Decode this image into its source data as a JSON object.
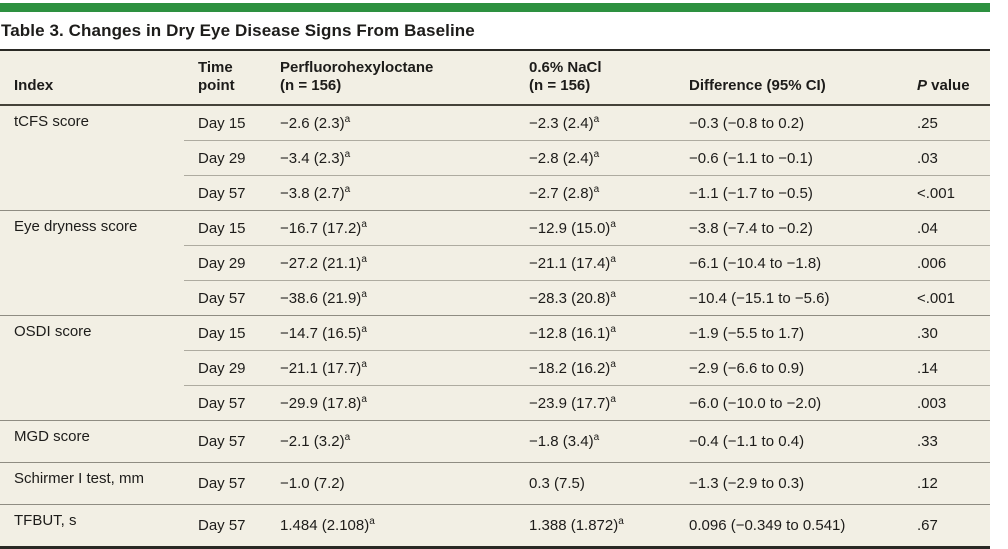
{
  "title": "Table 3. Changes in Dry Eye Disease Signs From Baseline",
  "colors": {
    "accent_green": "#2d9140",
    "table_background": "#f2efe4",
    "rule_dark": "#2a2924",
    "text": "#1d1c1a"
  },
  "table": {
    "columns": [
      {
        "label": "Index"
      },
      {
        "lines": [
          "Time",
          "point"
        ]
      },
      {
        "lines": [
          "Perfluorohexyloctane",
          "(n = 156)"
        ]
      },
      {
        "lines": [
          "0.6% NaCl",
          "(n = 156)"
        ]
      },
      {
        "label": "Difference (95% CI)"
      },
      {
        "italic_prefix": "P",
        "label": " value"
      }
    ],
    "footnote_marker": "a",
    "groups": [
      {
        "index": "tCFS score",
        "rows": [
          {
            "time": "Day 15",
            "drug": {
              "text": "−2.6 (2.3)",
              "sup": "a"
            },
            "nacl": {
              "text": "−2.3 (2.4)",
              "sup": "a"
            },
            "diff": "−0.3 (−0.8 to 0.2)",
            "p": ".25"
          },
          {
            "time": "Day 29",
            "drug": {
              "text": "−3.4 (2.3)",
              "sup": "a"
            },
            "nacl": {
              "text": "−2.8 (2.4)",
              "sup": "a"
            },
            "diff": "−0.6 (−1.1 to −0.1)",
            "p": ".03"
          },
          {
            "time": "Day 57",
            "drug": {
              "text": "−3.8 (2.7)",
              "sup": "a"
            },
            "nacl": {
              "text": "−2.7 (2.8)",
              "sup": "a"
            },
            "diff": "−1.1 (−1.7 to −0.5)",
            "p": "<.001"
          }
        ]
      },
      {
        "index": "Eye dryness score",
        "rows": [
          {
            "time": "Day 15",
            "drug": {
              "text": "−16.7 (17.2)",
              "sup": "a"
            },
            "nacl": {
              "text": "−12.9 (15.0)",
              "sup": "a"
            },
            "diff": "−3.8 (−7.4 to −0.2)",
            "p": ".04"
          },
          {
            "time": "Day 29",
            "drug": {
              "text": "−27.2 (21.1)",
              "sup": "a"
            },
            "nacl": {
              "text": "−21.1 (17.4)",
              "sup": "a"
            },
            "diff": "−6.1 (−10.4 to −1.8)",
            "p": ".006"
          },
          {
            "time": "Day 57",
            "drug": {
              "text": "−38.6 (21.9)",
              "sup": "a"
            },
            "nacl": {
              "text": "−28.3 (20.8)",
              "sup": "a"
            },
            "diff": "−10.4 (−15.1 to −5.6)",
            "p": "<.001"
          }
        ]
      },
      {
        "index": "OSDI score",
        "rows": [
          {
            "time": "Day 15",
            "drug": {
              "text": "−14.7 (16.5)",
              "sup": "a"
            },
            "nacl": {
              "text": "−12.8 (16.1)",
              "sup": "a"
            },
            "diff": "−1.9 (−5.5 to 1.7)",
            "p": ".30"
          },
          {
            "time": "Day 29",
            "drug": {
              "text": "−21.1 (17.7)",
              "sup": "a"
            },
            "nacl": {
              "text": "−18.2 (16.2)",
              "sup": "a"
            },
            "diff": "−2.9 (−6.6 to 0.9)",
            "p": ".14"
          },
          {
            "time": "Day 57",
            "drug": {
              "text": "−29.9 (17.8)",
              "sup": "a"
            },
            "nacl": {
              "text": "−23.9 (17.7)",
              "sup": "a"
            },
            "diff": "−6.0 (−10.0 to −2.0)",
            "p": ".003"
          }
        ]
      },
      {
        "index": "MGD score",
        "rows": [
          {
            "time": "Day 57",
            "drug": {
              "text": "−2.1 (3.2)",
              "sup": "a"
            },
            "nacl": {
              "text": "−1.8 (3.4)",
              "sup": "a"
            },
            "diff": "−0.4 (−1.1 to 0.4)",
            "p": ".33"
          }
        ]
      },
      {
        "index": "Schirmer I test, mm",
        "rows": [
          {
            "time": "Day 57",
            "drug": {
              "text": "−1.0 (7.2)"
            },
            "nacl": {
              "text": "0.3 (7.5)"
            },
            "diff": "−1.3 (−2.9 to 0.3)",
            "p": ".12"
          }
        ]
      },
      {
        "index": "TFBUT, s",
        "rows": [
          {
            "time": "Day 57",
            "drug": {
              "text": "1.484 (2.108)",
              "sup": "a"
            },
            "nacl": {
              "text": "1.388 (1.872)",
              "sup": "a"
            },
            "diff": "0.096 (−0.349 to 0.541)",
            "p": ".67"
          }
        ]
      }
    ]
  }
}
